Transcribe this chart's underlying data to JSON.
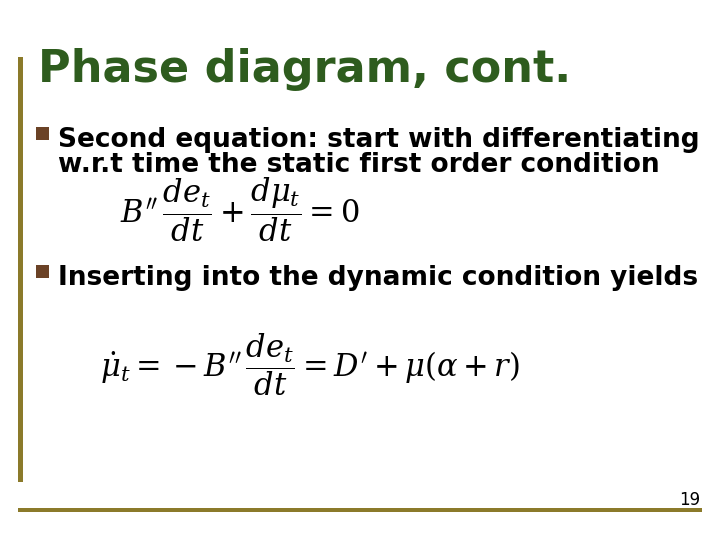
{
  "title": "Phase diagram, cont.",
  "title_color": "#2E5C1E",
  "title_fontsize": 32,
  "background_color": "#FFFFFF",
  "border_left_color": "#8B7A2A",
  "border_bottom_color": "#8B7A2A",
  "bullet_color": "#6B4226",
  "bullet1_line1": "Second equation: start with differentiating",
  "bullet1_line2": "w.r.t time the static first order condition",
  "bullet2_text": "Inserting into the dynamic condition yields",
  "page_number": "19",
  "text_fontsize": 19,
  "eq_fontsize": 22
}
